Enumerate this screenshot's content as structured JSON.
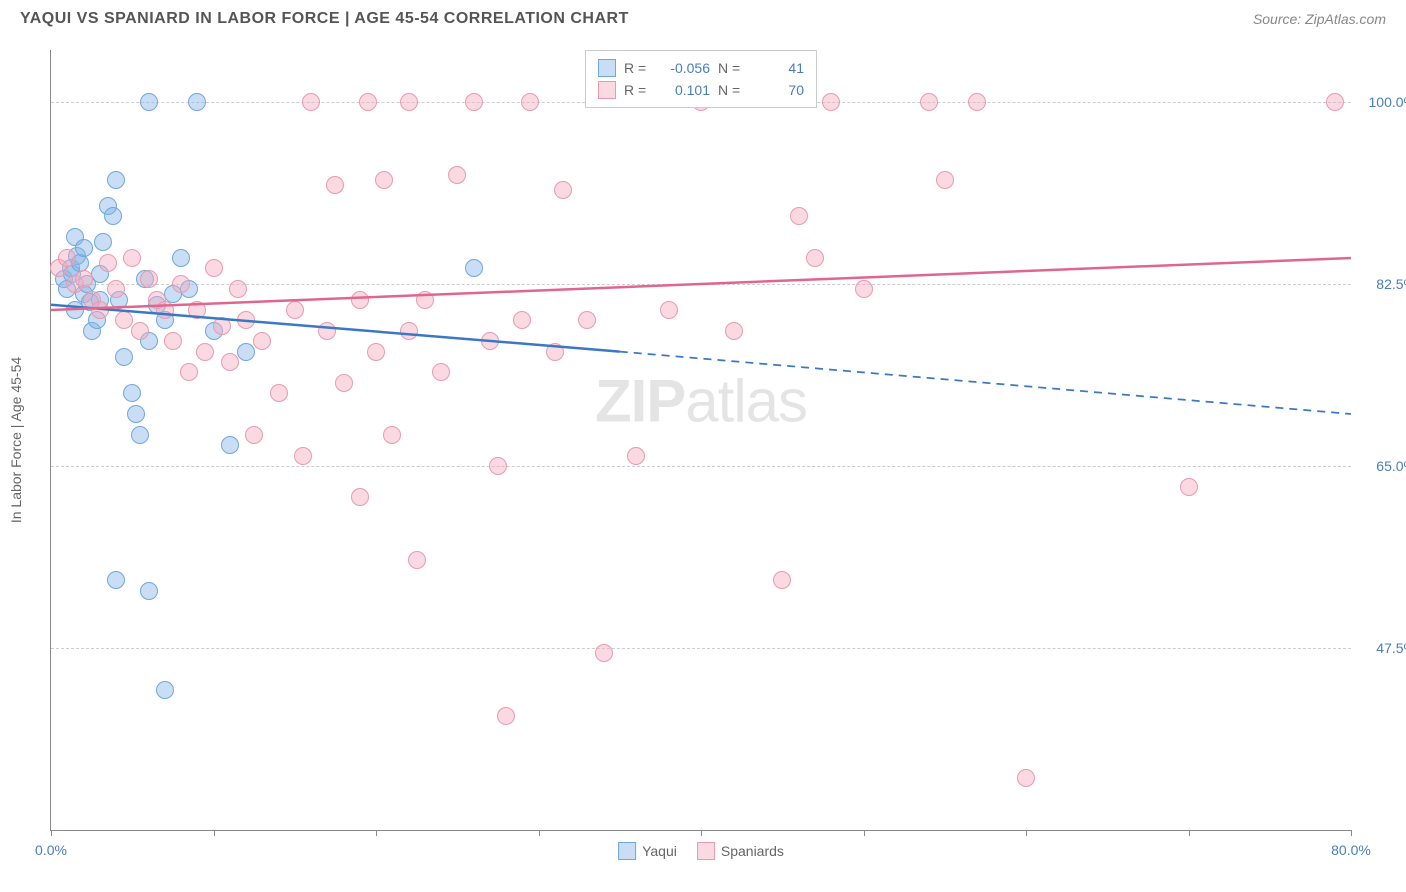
{
  "title": "YAQUI VS SPANIARD IN LABOR FORCE | AGE 45-54 CORRELATION CHART",
  "source": "Source: ZipAtlas.com",
  "watermark_zip": "ZIP",
  "watermark_atlas": "atlas",
  "chart": {
    "type": "scatter",
    "background_color": "#ffffff",
    "grid_color": "#cccccc",
    "border_color": "#888888",
    "yaxis_label": "In Labor Force | Age 45-54",
    "xlim": [
      0,
      80
    ],
    "ylim": [
      30,
      105
    ],
    "xticks": [
      0,
      10,
      20,
      30,
      40,
      50,
      60,
      70,
      80
    ],
    "xtick_labels_shown": {
      "0": "0.0%",
      "80": "80.0%"
    },
    "yticks": [
      47.5,
      65.0,
      82.5,
      100.0
    ],
    "ytick_labels": [
      "47.5%",
      "65.0%",
      "82.5%",
      "100.0%"
    ],
    "label_fontsize": 14,
    "label_color": "#4a7ebb",
    "axis_label_color": "#666666",
    "title_color": "#555555",
    "title_fontsize": 16,
    "series": [
      {
        "name": "Yaqui",
        "marker_fill": "rgba(135,180,230,0.45)",
        "marker_stroke": "#6fa8dc",
        "marker_size": 16,
        "line_color": "#3b78c4",
        "line_width": 2.5,
        "r": "-0.056",
        "n": "41",
        "regression": {
          "x1": 0,
          "y1": 80.5,
          "x2_solid": 35,
          "y2_solid": 76.0,
          "x2": 80,
          "y2": 70.0
        },
        "points": [
          [
            0.8,
            83.0
          ],
          [
            1.0,
            82.0
          ],
          [
            1.2,
            84.0
          ],
          [
            1.3,
            83.5
          ],
          [
            1.5,
            80.0
          ],
          [
            1.6,
            85.2
          ],
          [
            1.8,
            84.5
          ],
          [
            2.0,
            81.5
          ],
          [
            2.2,
            82.5
          ],
          [
            2.4,
            80.8
          ],
          [
            2.5,
            78.0
          ],
          [
            2.8,
            79.0
          ],
          [
            3.0,
            81.0
          ],
          [
            3.0,
            83.5
          ],
          [
            3.2,
            86.5
          ],
          [
            3.5,
            90.0
          ],
          [
            3.8,
            89.0
          ],
          [
            4.0,
            92.5
          ],
          [
            4.2,
            81.0
          ],
          [
            4.5,
            75.5
          ],
          [
            5.0,
            72.0
          ],
          [
            5.2,
            70.0
          ],
          [
            5.5,
            68.0
          ],
          [
            5.8,
            83.0
          ],
          [
            6.0,
            77.0
          ],
          [
            6.0,
            100.0
          ],
          [
            6.5,
            80.5
          ],
          [
            7.0,
            79.0
          ],
          [
            7.5,
            81.5
          ],
          [
            8.0,
            85.0
          ],
          [
            8.5,
            82.0
          ],
          [
            9.0,
            100.0
          ],
          [
            10.0,
            78.0
          ],
          [
            11.0,
            67.0
          ],
          [
            12.0,
            76.0
          ],
          [
            4.0,
            54.0
          ],
          [
            6.0,
            53.0
          ],
          [
            7.0,
            43.5
          ],
          [
            1.5,
            87.0
          ],
          [
            2.0,
            86.0
          ],
          [
            26.0,
            84.0
          ]
        ]
      },
      {
        "name": "Spaniards",
        "marker_fill": "rgba(244,170,190,0.45)",
        "marker_stroke": "#e89ab0",
        "marker_size": 16,
        "line_color": "#e06690",
        "line_width": 2.5,
        "r": "0.101",
        "n": "70",
        "regression": {
          "x1": 0,
          "y1": 80.0,
          "x2_solid": 80,
          "y2_solid": 85.0,
          "x2": 80,
          "y2": 85.0
        },
        "points": [
          [
            0.5,
            84.0
          ],
          [
            1.0,
            85.0
          ],
          [
            1.5,
            82.5
          ],
          [
            2.0,
            83.0
          ],
          [
            2.5,
            81.0
          ],
          [
            3.0,
            80.0
          ],
          [
            3.5,
            84.5
          ],
          [
            4.0,
            82.0
          ],
          [
            4.5,
            79.0
          ],
          [
            5.0,
            85.0
          ],
          [
            5.5,
            78.0
          ],
          [
            6.0,
            83.0
          ],
          [
            6.5,
            81.0
          ],
          [
            7.0,
            80.0
          ],
          [
            7.5,
            77.0
          ],
          [
            8.0,
            82.5
          ],
          [
            8.5,
            74.0
          ],
          [
            9.0,
            80.0
          ],
          [
            9.5,
            76.0
          ],
          [
            10.0,
            84.0
          ],
          [
            10.5,
            78.5
          ],
          [
            11.0,
            75.0
          ],
          [
            11.5,
            82.0
          ],
          [
            12.0,
            79.0
          ],
          [
            12.5,
            68.0
          ],
          [
            13.0,
            77.0
          ],
          [
            14.0,
            72.0
          ],
          [
            15.0,
            80.0
          ],
          [
            15.5,
            66.0
          ],
          [
            16.0,
            100.0
          ],
          [
            17.0,
            78.0
          ],
          [
            17.5,
            92.0
          ],
          [
            18.0,
            73.0
          ],
          [
            19.0,
            81.0
          ],
          [
            19.5,
            100.0
          ],
          [
            20.0,
            76.0
          ],
          [
            20.5,
            92.5
          ],
          [
            21.0,
            68.0
          ],
          [
            22.0,
            78.0
          ],
          [
            22.5,
            56.0
          ],
          [
            23.0,
            81.0
          ],
          [
            24.0,
            74.0
          ],
          [
            25.0,
            93.0
          ],
          [
            26.0,
            100.0
          ],
          [
            27.0,
            77.0
          ],
          [
            27.5,
            65.0
          ],
          [
            28.0,
            41.0
          ],
          [
            29.0,
            79.0
          ],
          [
            29.5,
            100.0
          ],
          [
            31.0,
            76.0
          ],
          [
            31.5,
            91.5
          ],
          [
            33.0,
            79.0
          ],
          [
            34.0,
            47.0
          ],
          [
            36.0,
            66.0
          ],
          [
            38.0,
            80.0
          ],
          [
            40.0,
            100.0
          ],
          [
            42.0,
            78.0
          ],
          [
            45.0,
            54.0
          ],
          [
            46.0,
            89.0
          ],
          [
            47.0,
            85.0
          ],
          [
            48.0,
            100.0
          ],
          [
            50.0,
            82.0
          ],
          [
            54.0,
            100.0
          ],
          [
            55.0,
            92.5
          ],
          [
            57.0,
            100.0
          ],
          [
            60.0,
            35.0
          ],
          [
            70.0,
            63.0
          ],
          [
            79.0,
            100.0
          ],
          [
            22.0,
            100.0
          ],
          [
            19.0,
            62.0
          ]
        ]
      }
    ],
    "legend": {
      "top_border": "#cccccc",
      "r_label": "R =",
      "n_label": "N ="
    }
  }
}
